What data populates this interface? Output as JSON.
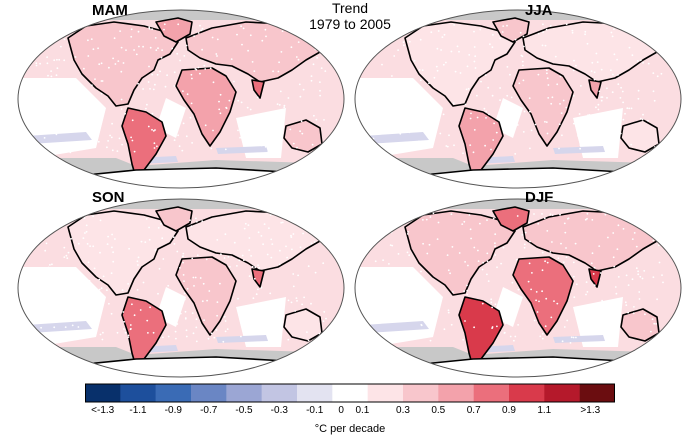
{
  "title": {
    "line1": "Trend",
    "line2": "1979 to 2005"
  },
  "panels": [
    {
      "label": "MAM"
    },
    {
      "label": "JJA"
    },
    {
      "label": "SON"
    },
    {
      "label": "DJF"
    }
  ],
  "legend": {
    "labels": [
      "<-1.3",
      "-1.1",
      "-0.9",
      "-0.7",
      "-0.5",
      "-0.3",
      "-0.1",
      "0",
      "0.1",
      "0.3",
      "0.5",
      "0.7",
      "0.9",
      "1.1",
      ">1.3"
    ],
    "colors": [
      "#08306b",
      "#1d4f9c",
      "#3a6bb5",
      "#6a86c4",
      "#9ba6d4",
      "#c2c5e3",
      "#e3e3f1",
      "#ffffff",
      "#fde4e7",
      "#f8c6cc",
      "#f3a2ab",
      "#eb6f7c",
      "#d93a4b",
      "#b5192b",
      "#6b0d10"
    ],
    "units": "°C per decade"
  }
}
